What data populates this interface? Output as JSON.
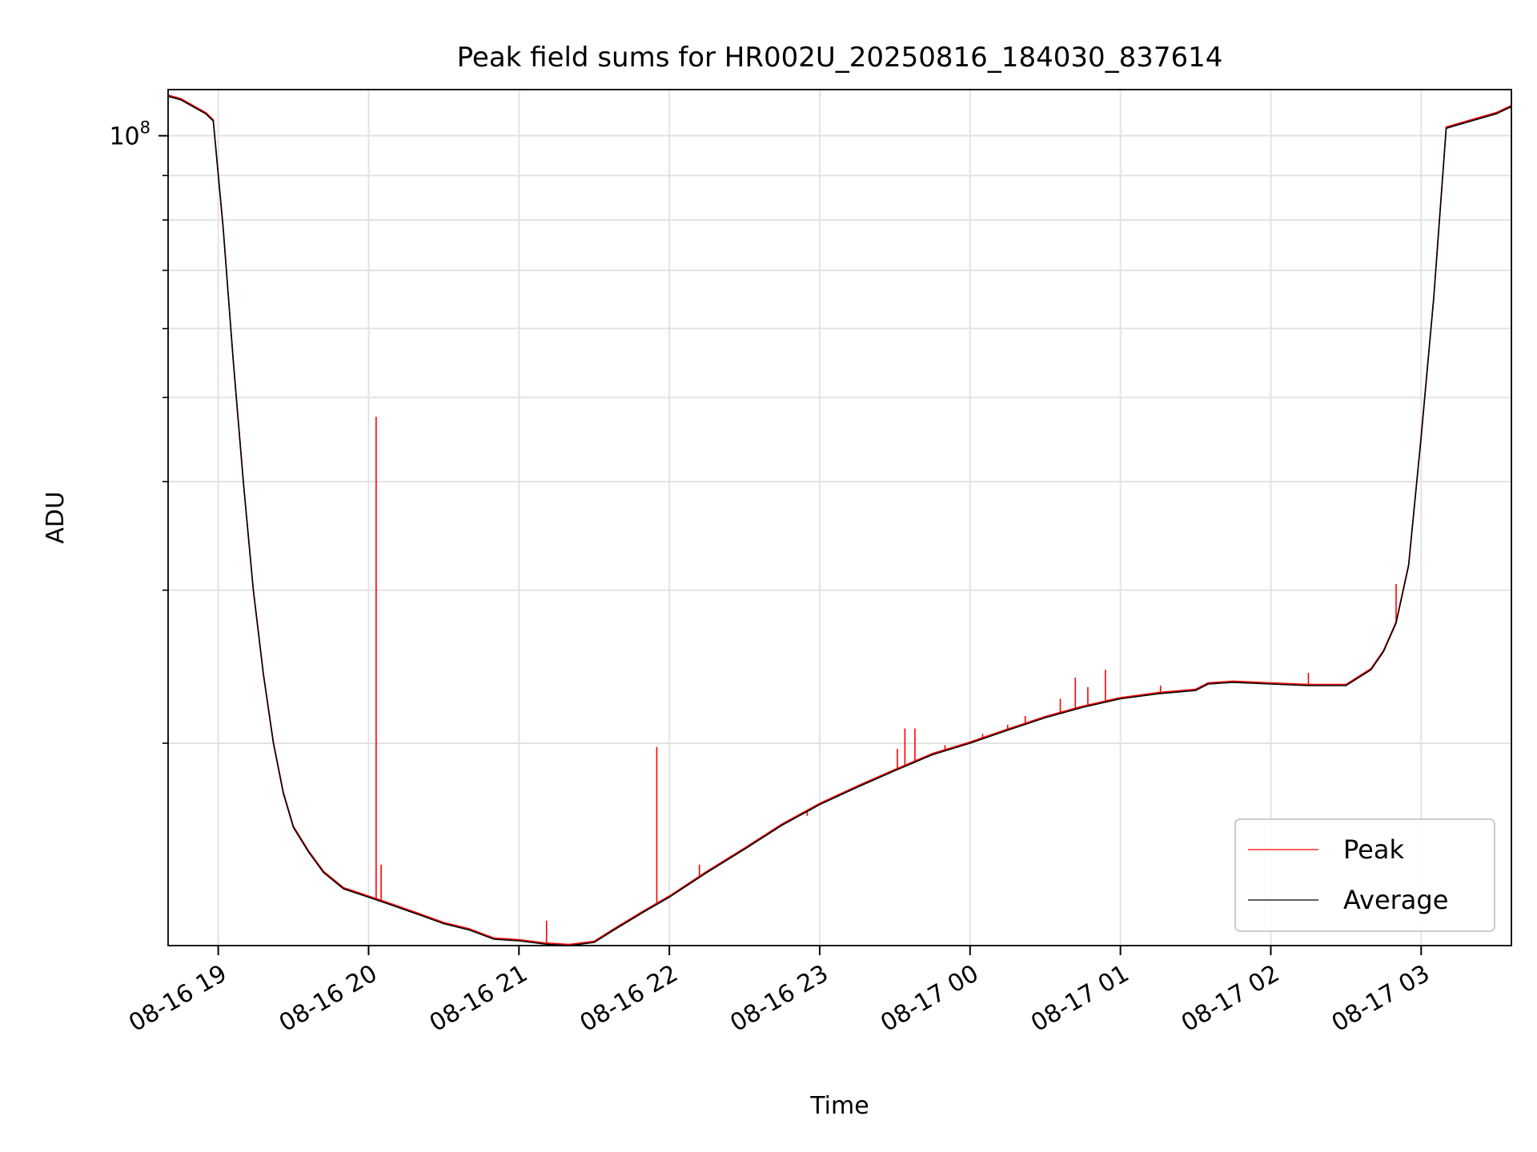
{
  "chart_data": {
    "type": "line",
    "title": "Peak field sums for HR002U_20250816_184030_837614",
    "xlabel": "Time",
    "ylabel": "ADU",
    "y_scale": "log",
    "ylim": [
      11700000,
      113000000
    ],
    "xlim": [
      "2025-08-16 18:40",
      "2025-08-17 03:36"
    ],
    "y_tick_labels": [
      {
        "value": 100000000,
        "base": "10",
        "exp": "8"
      }
    ],
    "y_minor_ticks": [
      20000000,
      30000000,
      40000000,
      50000000,
      60000000,
      70000000,
      80000000,
      90000000
    ],
    "x_ticks": [
      {
        "value": "2025-08-16 19:00",
        "label": "08-16 19"
      },
      {
        "value": "2025-08-16 20:00",
        "label": "08-16 20"
      },
      {
        "value": "2025-08-16 21:00",
        "label": "08-16 21"
      },
      {
        "value": "2025-08-16 22:00",
        "label": "08-16 22"
      },
      {
        "value": "2025-08-16 23:00",
        "label": "08-16 23"
      },
      {
        "value": "2025-08-17 00:00",
        "label": "08-17 00"
      },
      {
        "value": "2025-08-17 01:00",
        "label": "08-17 01"
      },
      {
        "value": "2025-08-17 02:00",
        "label": "08-17 02"
      },
      {
        "value": "2025-08-17 03:00",
        "label": "08-17 03"
      }
    ],
    "grid": true,
    "legend_position": "lower-right",
    "series": [
      {
        "name": "Average",
        "color": "#000000",
        "x": [
          "2025-08-16 18:40",
          "2025-08-16 18:45",
          "2025-08-16 18:50",
          "2025-08-16 18:55",
          "2025-08-16 18:58",
          "2025-08-16 19:02",
          "2025-08-16 19:06",
          "2025-08-16 19:10",
          "2025-08-16 19:14",
          "2025-08-16 19:18",
          "2025-08-16 19:22",
          "2025-08-16 19:26",
          "2025-08-16 19:30",
          "2025-08-16 19:36",
          "2025-08-16 19:42",
          "2025-08-16 19:50",
          "2025-08-16 20:00",
          "2025-08-16 20:10",
          "2025-08-16 20:20",
          "2025-08-16 20:30",
          "2025-08-16 20:40",
          "2025-08-16 20:50",
          "2025-08-16 21:00",
          "2025-08-16 21:10",
          "2025-08-16 21:20",
          "2025-08-16 21:30",
          "2025-08-16 21:40",
          "2025-08-16 21:50",
          "2025-08-16 22:00",
          "2025-08-16 22:15",
          "2025-08-16 22:30",
          "2025-08-16 22:45",
          "2025-08-16 23:00",
          "2025-08-16 23:15",
          "2025-08-16 23:30",
          "2025-08-16 23:45",
          "2025-08-17 00:00",
          "2025-08-17 00:15",
          "2025-08-17 00:30",
          "2025-08-17 00:45",
          "2025-08-17 01:00",
          "2025-08-17 01:15",
          "2025-08-17 01:30",
          "2025-08-17 01:35",
          "2025-08-17 01:45",
          "2025-08-17 02:00",
          "2025-08-17 02:15",
          "2025-08-17 02:30",
          "2025-08-17 02:40",
          "2025-08-17 02:45",
          "2025-08-17 02:50",
          "2025-08-17 02:55",
          "2025-08-17 03:00",
          "2025-08-17 03:05",
          "2025-08-17 03:10",
          "2025-08-17 03:20",
          "2025-08-17 03:30",
          "2025-08-17 03:36"
        ],
        "values": [
          111000000,
          110000000,
          108000000,
          106000000,
          104000000,
          78000000,
          55000000,
          40000000,
          30000000,
          24000000,
          20000000,
          17500000,
          16000000,
          15000000,
          14200000,
          13600000,
          13300000,
          13000000,
          12700000,
          12400000,
          12200000,
          11900000,
          11850000,
          11750000,
          11700000,
          11800000,
          12300000,
          12800000,
          13300000,
          14200000,
          15100000,
          16100000,
          17000000,
          17800000,
          18600000,
          19400000,
          20000000,
          20700000,
          21400000,
          22000000,
          22500000,
          22800000,
          23000000,
          23400000,
          23500000,
          23400000,
          23300000,
          23300000,
          24300000,
          25500000,
          27500000,
          32000000,
          45000000,
          65000000,
          102000000,
          104000000,
          106000000,
          108000000
        ]
      },
      {
        "name": "Peak",
        "color": "#ff0000",
        "spikes": [
          {
            "x": "2025-08-16 20:03",
            "value": 47500000
          },
          {
            "x": "2025-08-16 20:05",
            "value": 14500000
          },
          {
            "x": "2025-08-16 21:11",
            "value": 12500000
          },
          {
            "x": "2025-08-16 21:55",
            "value": 19800000
          },
          {
            "x": "2025-08-16 22:12",
            "value": 14500000
          },
          {
            "x": "2025-08-16 22:55",
            "value": 16500000
          },
          {
            "x": "2025-08-16 23:31",
            "value": 19700000
          },
          {
            "x": "2025-08-16 23:34",
            "value": 20800000
          },
          {
            "x": "2025-08-16 23:38",
            "value": 20800000
          },
          {
            "x": "2025-08-16 23:50",
            "value": 19900000
          },
          {
            "x": "2025-08-17 00:05",
            "value": 20500000
          },
          {
            "x": "2025-08-17 00:15",
            "value": 21000000
          },
          {
            "x": "2025-08-17 00:22",
            "value": 21500000
          },
          {
            "x": "2025-08-17 00:36",
            "value": 22500000
          },
          {
            "x": "2025-08-17 00:42",
            "value": 23800000
          },
          {
            "x": "2025-08-17 00:47",
            "value": 23200000
          },
          {
            "x": "2025-08-17 00:54",
            "value": 24300000
          },
          {
            "x": "2025-08-17 01:16",
            "value": 23300000
          },
          {
            "x": "2025-08-17 02:15",
            "value": 24100000
          },
          {
            "x": "2025-08-17 02:50",
            "value": 30500000
          }
        ]
      }
    ]
  }
}
